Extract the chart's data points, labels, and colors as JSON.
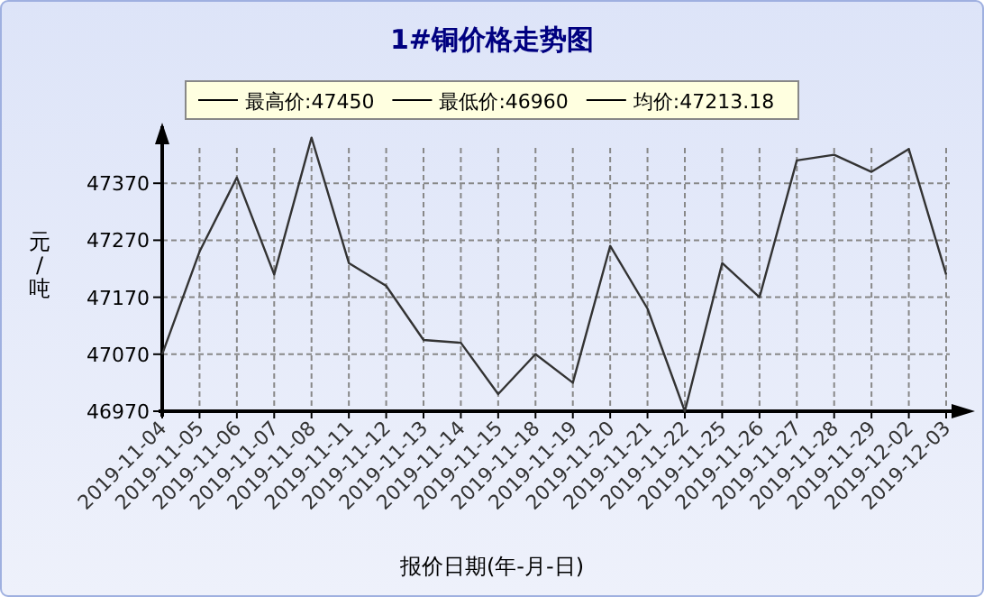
{
  "chart_data": {
    "type": "line",
    "title": "1#铜价格走势图",
    "xlabel": "报价日期(年-月-日)",
    "ylabel": "元/吨",
    "annotations": [
      "最高价:47450",
      "最低价:46960",
      "均价:47213.18"
    ],
    "categories": [
      "2019-11-04",
      "2019-11-05",
      "2019-11-06",
      "2019-11-07",
      "2019-11-08",
      "2019-11-11",
      "2019-11-12",
      "2019-11-13",
      "2019-11-14",
      "2019-11-15",
      "2019-11-18",
      "2019-11-19",
      "2019-11-20",
      "2019-11-21",
      "2019-11-22",
      "2019-11-25",
      "2019-11-26",
      "2019-11-27",
      "2019-11-28",
      "2019-11-29",
      "2019-12-02",
      "2019-12-03"
    ],
    "series": [
      {
        "color": "#333333",
        "values": [
          47070,
          47250,
          47380,
          47210,
          47450,
          47230,
          47190,
          47095,
          47090,
          47000,
          47070,
          47020,
          47260,
          47150,
          46970,
          47230,
          47170,
          47410,
          47420,
          47390,
          47430,
          47210
        ]
      }
    ],
    "ylim": [
      46970,
      47470
    ],
    "yticks": [
      46970,
      47070,
      47170,
      47270,
      47370
    ],
    "grid": true,
    "line_style": "solid"
  }
}
